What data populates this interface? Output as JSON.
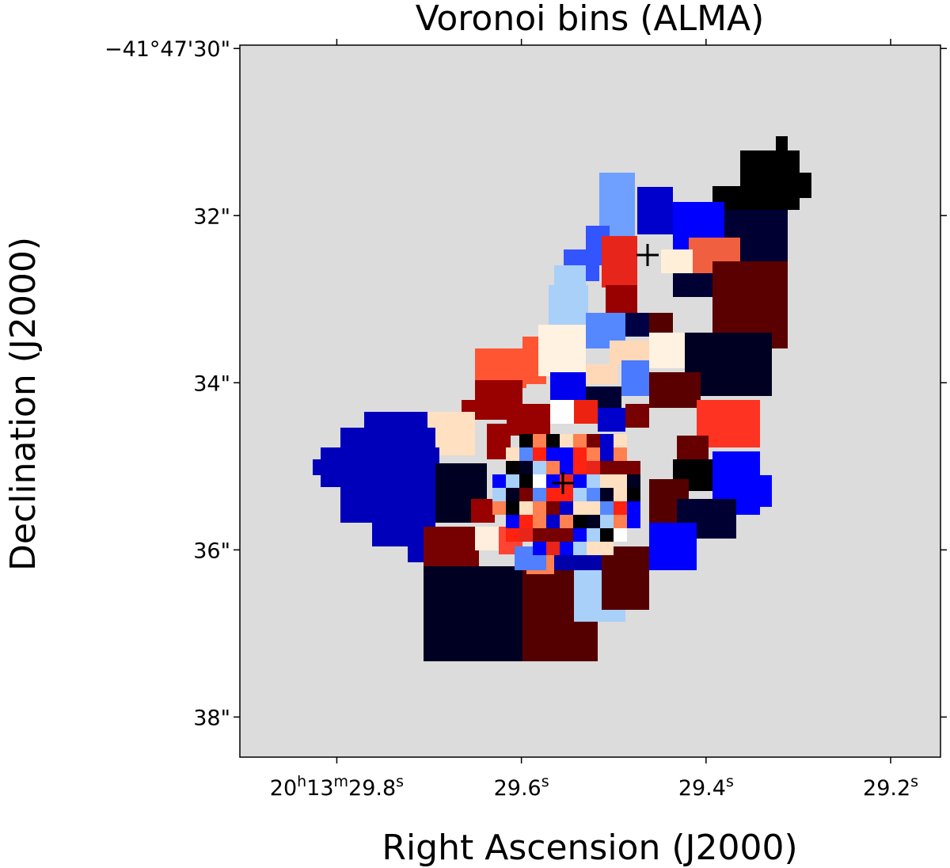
{
  "chart_data": {
    "type": "image",
    "title": "Voronoi bins (ALMA)",
    "xlabel": "Right Ascension (J2000)",
    "ylabel": "Declination (J2000)",
    "xlim": [
      29.905,
      29.146
    ],
    "ylim": [
      29.96,
      38.48
    ],
    "xticks": [
      {
        "value": 29.8,
        "label": "20h13m29.8s"
      },
      {
        "value": 29.6,
        "label": "29.6s"
      },
      {
        "value": 29.4,
        "label": "29.4s"
      },
      {
        "value": 29.2,
        "label": "29.2s"
      }
    ],
    "yticks": [
      {
        "value": 30,
        "label": "−41°47'30\""
      },
      {
        "value": 32,
        "label": "32\""
      },
      {
        "value": 34,
        "label": "34\""
      },
      {
        "value": 36,
        "label": "36\""
      },
      {
        "value": 38,
        "label": "38\""
      }
    ]
  }
}
